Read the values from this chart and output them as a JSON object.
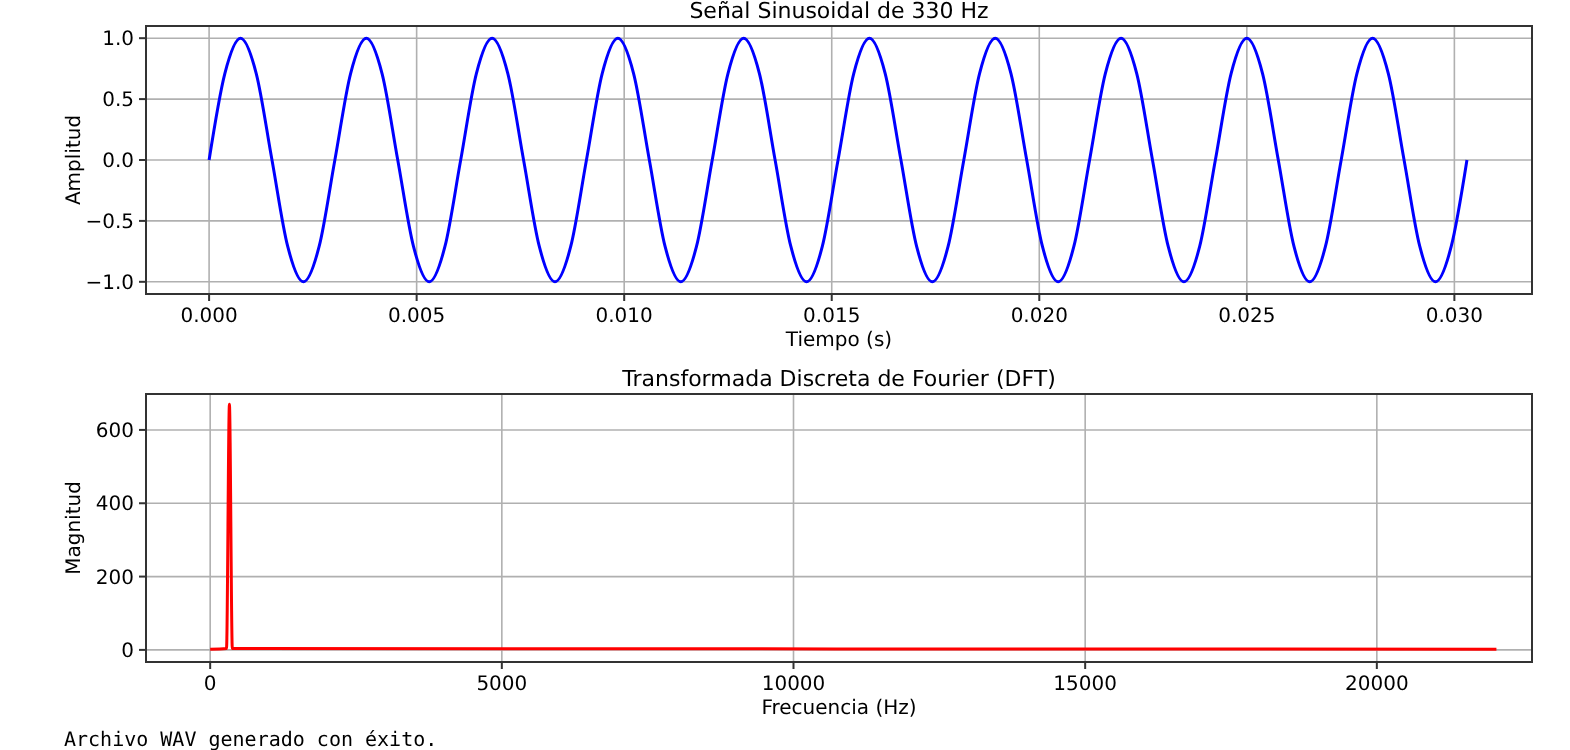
{
  "chart_data": [
    {
      "type": "line",
      "title": "Señal Sinusoidal de 330 Hz",
      "xlabel": "Tiempo (s)",
      "ylabel": "Amplitud",
      "xlim": [
        -0.00152,
        0.03187
      ],
      "ylim": [
        -1.1,
        1.1
      ],
      "xticks": [
        {
          "value": 0,
          "label": "0.000"
        },
        {
          "value": 0.005,
          "label": "0.005"
        },
        {
          "value": 0.01,
          "label": "0.010"
        },
        {
          "value": 0.015,
          "label": "0.015"
        },
        {
          "value": 0.02,
          "label": "0.020"
        },
        {
          "value": 0.025,
          "label": "0.025"
        },
        {
          "value": 0.03,
          "label": "0.030"
        }
      ],
      "yticks": [
        {
          "value": -1,
          "label": "−1.0"
        },
        {
          "value": -0.5,
          "label": "−0.5"
        },
        {
          "value": 0,
          "label": "0.0"
        },
        {
          "value": 0.5,
          "label": "0.5"
        },
        {
          "value": 1,
          "label": "1.0"
        }
      ],
      "grid": true,
      "marker": "none",
      "line_style": "solid",
      "series": [
        {
          "color": "#0000ff",
          "x": [
            0,
            0.000379,
            0.000758,
            0.001136,
            0.001515,
            0.001894,
            0.002273,
            0.002651,
            0.00303,
            0.003409,
            0.003788,
            0.004167,
            0.004545,
            0.004924,
            0.005303,
            0.005682,
            0.006061,
            0.006439,
            0.006818,
            0.007197,
            0.007576,
            0.007955,
            0.008333,
            0.008712,
            0.009091,
            0.00947,
            0.009848,
            0.010227,
            0.010606,
            0.010985,
            0.011364,
            0.011742,
            0.012121,
            0.0125,
            0.012879,
            0.013258,
            0.013636,
            0.014015,
            0.014394,
            0.014773,
            0.015152,
            0.01553,
            0.015909,
            0.016288,
            0.016667,
            0.017045,
            0.017424,
            0.017803,
            0.018182,
            0.018561,
            0.018939,
            0.019318,
            0.019697,
            0.020076,
            0.020455,
            0.020833,
            0.021212,
            0.021591,
            0.02197,
            0.022348,
            0.022727,
            0.023106,
            0.023485,
            0.023864,
            0.024242,
            0.024621,
            0.025,
            0.025379,
            0.025758,
            0.026136,
            0.026515,
            0.026894,
            0.027273,
            0.027652,
            0.02803,
            0.028409,
            0.028788,
            0.029167,
            0.029545,
            0.029924,
            0.030303
          ],
          "values": [
            0,
            0.71,
            1,
            0.71,
            0,
            -0.71,
            -1,
            -0.71,
            0,
            0.71,
            1,
            0.71,
            0,
            -0.71,
            -1,
            -0.71,
            0,
            0.71,
            1,
            0.71,
            0,
            -0.71,
            -1,
            -0.71,
            0,
            0.71,
            1,
            0.71,
            0,
            -0.71,
            -1,
            -0.71,
            0,
            0.71,
            1,
            0.71,
            0,
            -0.71,
            -1,
            -0.71,
            0,
            0.71,
            1,
            0.71,
            0,
            -0.71,
            -1,
            -0.71,
            0,
            0.71,
            1,
            0.71,
            0,
            -0.71,
            -1,
            -0.71,
            0,
            0.71,
            1,
            0.71,
            0,
            -0.71,
            -1,
            -0.71,
            0,
            0.71,
            1,
            0.71,
            0,
            -0.71,
            -1,
            -0.71,
            0,
            0.71,
            1,
            0.71,
            0,
            -0.71,
            -1,
            -0.71,
            0
          ]
        }
      ]
    },
    {
      "type": "line",
      "title": "Transformada Discreta de Fourier (DFT)",
      "xlabel": "Frecuencia (Hz)",
      "ylabel": "Magnitud",
      "xlim": [
        -1100,
        22660
      ],
      "ylim": [
        -33,
        698
      ],
      "xticks": [
        0,
        5000,
        10000,
        15000,
        20000
      ],
      "yticks": [
        0,
        200,
        400,
        600
      ],
      "grid": true,
      "marker": "none",
      "line_style": "solid",
      "annotations": [
        "Archivo WAV generado con éxito."
      ],
      "series": [
        {
          "color": "#ff0000",
          "x": [
            0,
            280,
            330,
            380,
            22050
          ],
          "values": [
            2,
            4,
            670,
            4,
            2
          ]
        }
      ]
    }
  ]
}
